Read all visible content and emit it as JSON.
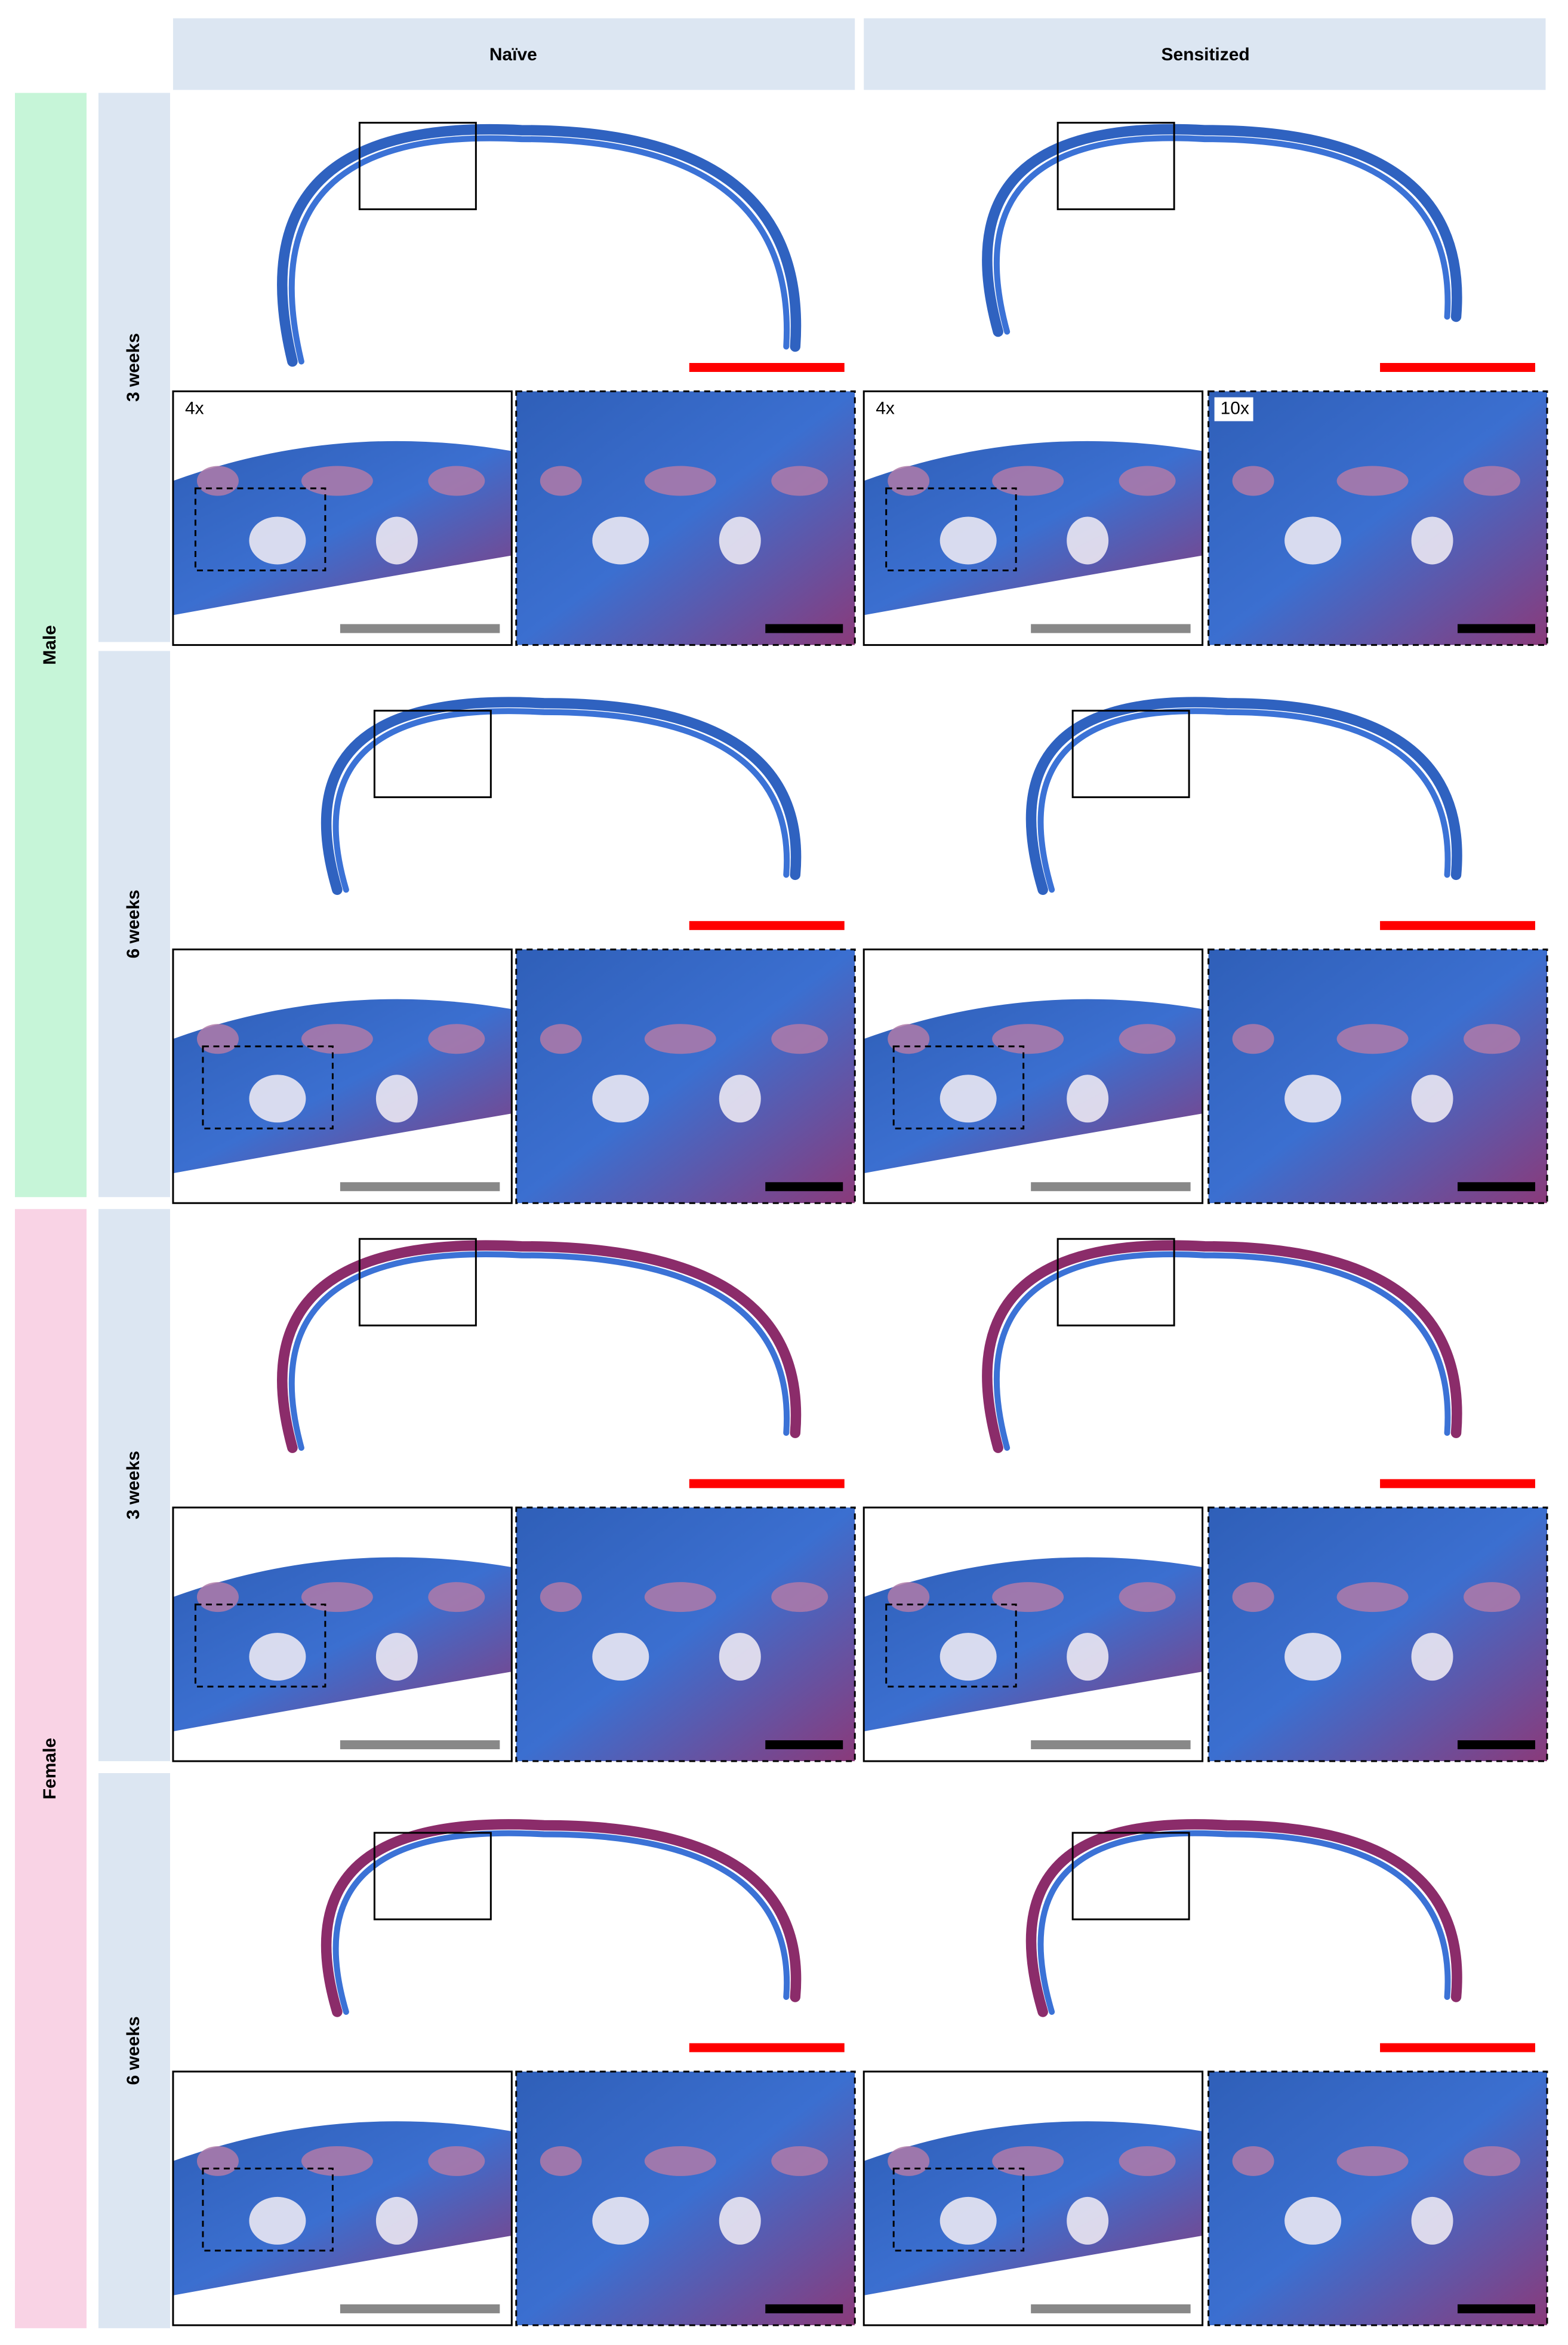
{
  "columns": [
    "Naïve",
    "Sensitized"
  ],
  "groups": [
    {
      "label": "Male",
      "rows": [
        "3 weeks",
        "6 weeks"
      ]
    },
    {
      "label": "Female",
      "rows": [
        "3 weeks",
        "6 weeks"
      ]
    }
  ],
  "magnification_labels": [
    "4x",
    "4x",
    "10x"
  ]
}
